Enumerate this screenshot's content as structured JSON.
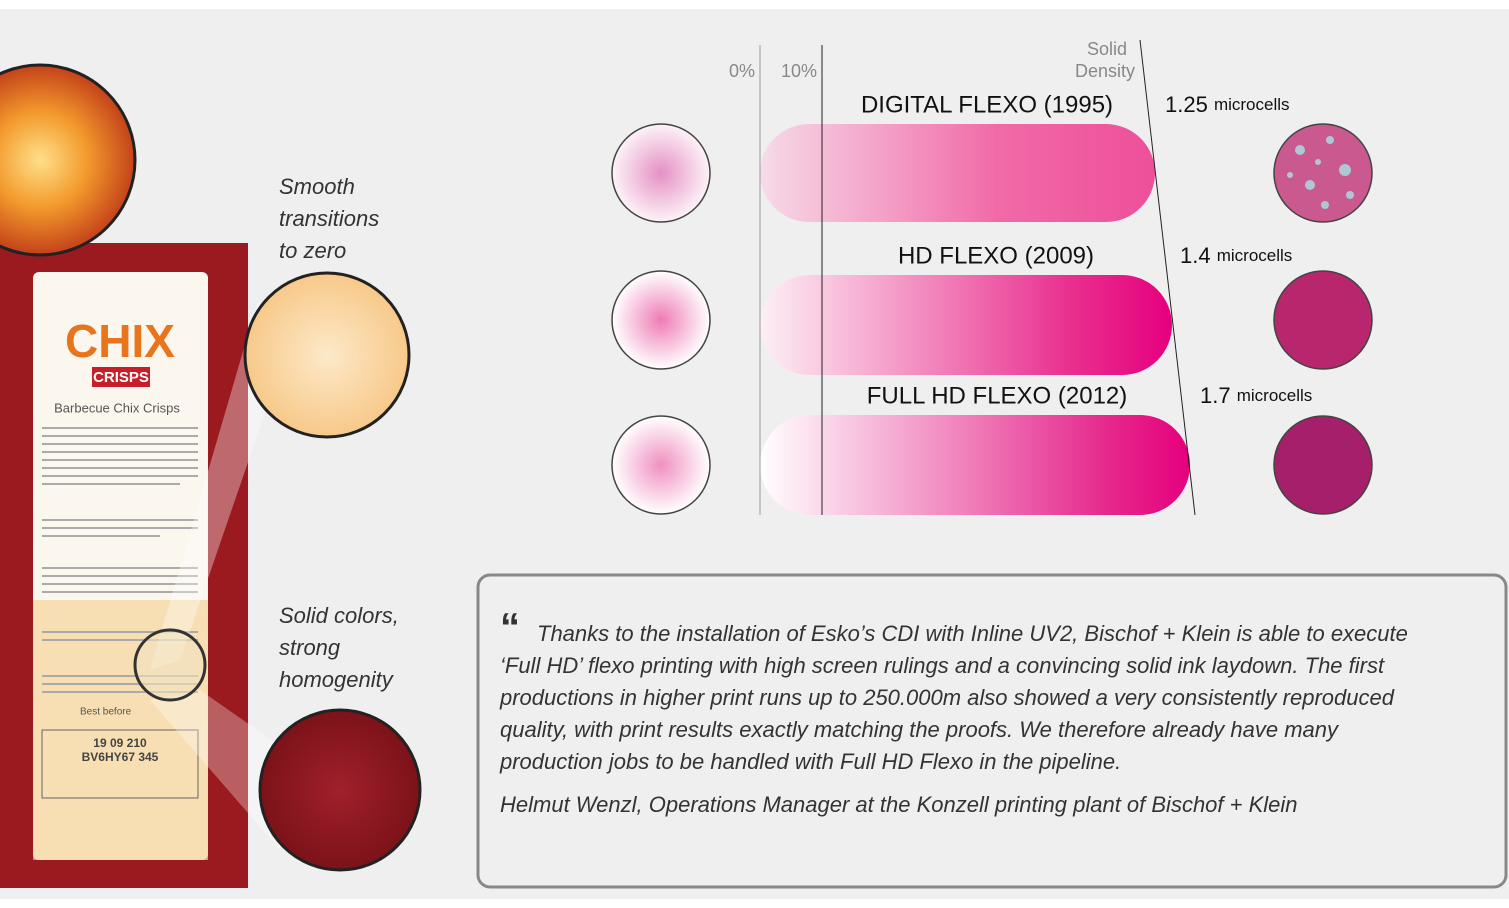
{
  "package": {
    "brand": "CHIX",
    "sub_brand": "CRISPS",
    "product": "Barbecue Chix Crisps",
    "best_before": "Best before",
    "date_code": "19 09 210",
    "batch_code": "BV6HY67 345"
  },
  "callouts": [
    {
      "lines": [
        "Smooth",
        "transitions",
        "to zero"
      ]
    },
    {
      "lines": [
        "Solid colors,",
        "strong",
        "homogenity"
      ]
    }
  ],
  "axis": {
    "zero": "0%",
    "ten": "10%",
    "solid_density": [
      "Solid",
      "Density"
    ]
  },
  "rows": [
    {
      "label": "DIGITAL FLEXO (1995)",
      "density": "1.25",
      "unit": "microcells"
    },
    {
      "label": "HD FLEXO (2009)",
      "density": "1.4",
      "unit": "microcells"
    },
    {
      "label": "FULL HD FLEXO (2012)",
      "density": "1.7",
      "unit": "microcells"
    }
  ],
  "quote": {
    "mark": "“",
    "lines": [
      "Thanks to the installation of Esko’s CDI with Inline UV2, Bischof + Klein is able to execute",
      "‘Full HD’ flexo printing with high screen rulings and a convincing solid ink laydown. The first",
      "productions in higher print runs up to 250.000m also showed a very consistently reproduced",
      "quality, with print results exactly matching the proofs. We therefore already have many",
      "production jobs to be handled with Full HD Flexo in the pipeline."
    ],
    "attribution": "Helmut Wenzl, Operations Manager at the Konzell printing plant of Bischof + Klein"
  }
}
